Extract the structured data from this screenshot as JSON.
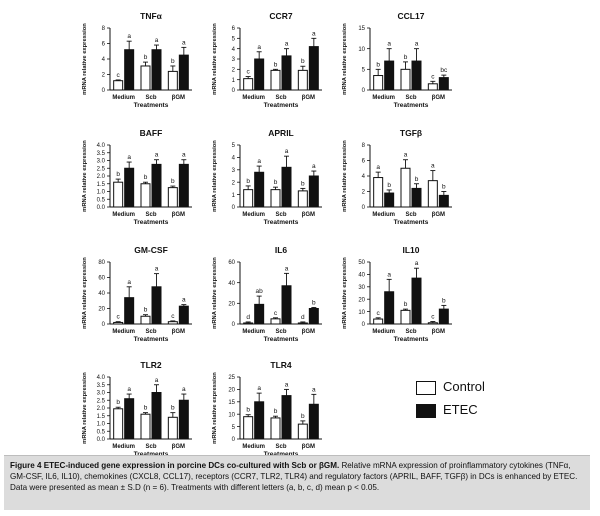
{
  "colors": {
    "control_fill": "#ffffff",
    "etec_fill": "#111111",
    "bar_stroke": "#111111",
    "caption_bg": "#dcdcdc"
  },
  "shared": {
    "ylabel": "mRNA relative expression",
    "xlabel": "Treatments",
    "categories": [
      "Medium",
      "Scb",
      "βGM"
    ]
  },
  "legend": {
    "control": "Control",
    "etec": "ETEC"
  },
  "caption": {
    "label": "Figure 4 ETEC-induced gene expression in porcine DCs co-cultured with Scb or βGM.",
    "text": "Relative mRNA expression of proinflammatory cytokines (TNFα, GM-CSF, IL6, IL10), chemokines (CXCL8, CCL17), receptors (CCR7, TLR2, TLR4) and regulatory factors (APRIL, BAFF, TGFβ) in DCs is enhanced by ETEC. Data were presented as mean ± S.D (n = 6). Treatments with different letters (a, b, c, d) mean p < 0.05."
  },
  "chart_data": [
    {
      "type": "bar",
      "title": "TNFα",
      "ylim": [
        0,
        8
      ],
      "yticks": [
        0,
        2,
        4,
        6,
        8
      ],
      "categories": [
        "Medium",
        "Scb",
        "βGM"
      ],
      "series": [
        {
          "name": "Control",
          "values": [
            1.2,
            3.1,
            2.4
          ],
          "errors": [
            0.1,
            0.5,
            0.7
          ],
          "letters": [
            "c",
            "b",
            "b"
          ]
        },
        {
          "name": "ETEC",
          "values": [
            5.2,
            5.2,
            4.5
          ],
          "errors": [
            1.1,
            0.6,
            1.0
          ],
          "letters": [
            "a",
            "a",
            "a"
          ]
        }
      ]
    },
    {
      "type": "bar",
      "title": "CCR7",
      "ylim": [
        0,
        6
      ],
      "yticks": [
        0,
        1,
        2,
        3,
        4,
        5,
        6
      ],
      "categories": [
        "Medium",
        "Scb",
        "βGM"
      ],
      "series": [
        {
          "name": "Control",
          "values": [
            1.1,
            1.9,
            1.9
          ],
          "errors": [
            0.2,
            0.1,
            0.4
          ],
          "letters": [
            "c",
            "b",
            "b"
          ]
        },
        {
          "name": "ETEC",
          "values": [
            3.0,
            3.3,
            4.2
          ],
          "errors": [
            0.7,
            0.7,
            0.8
          ],
          "letters": [
            "a",
            "a",
            "a"
          ]
        }
      ]
    },
    {
      "type": "bar",
      "title": "CCL17",
      "ylim": [
        0,
        15
      ],
      "yticks": [
        0,
        5,
        10,
        15
      ],
      "categories": [
        "Medium",
        "Scb",
        "βGM"
      ],
      "series": [
        {
          "name": "Control",
          "values": [
            3.5,
            5.0,
            1.5
          ],
          "errors": [
            1.5,
            1.8,
            0.6
          ],
          "letters": [
            "b",
            "b",
            "c"
          ]
        },
        {
          "name": "ETEC",
          "values": [
            7.0,
            7.0,
            3.0
          ],
          "errors": [
            3.0,
            3.0,
            0.6
          ],
          "letters": [
            "a",
            "a",
            "bc"
          ]
        }
      ]
    },
    {
      "type": "bar",
      "title": "BAFF",
      "ylim": [
        0,
        4
      ],
      "yticks": [
        0.0,
        0.5,
        1.0,
        1.5,
        2.0,
        2.5,
        3.0,
        3.5,
        4.0
      ],
      "categories": [
        "Medium",
        "Scb",
        "βGM"
      ],
      "series": [
        {
          "name": "Control",
          "values": [
            1.6,
            1.5,
            1.25
          ],
          "errors": [
            0.2,
            0.1,
            0.1
          ],
          "letters": [
            "b",
            "b",
            "b"
          ]
        },
        {
          "name": "ETEC",
          "values": [
            2.5,
            2.75,
            2.75
          ],
          "errors": [
            0.4,
            0.3,
            0.3
          ],
          "letters": [
            "a",
            "a",
            "a"
          ]
        }
      ]
    },
    {
      "type": "bar",
      "title": "APRIL",
      "ylim": [
        0,
        5
      ],
      "yticks": [
        0,
        1,
        2,
        3,
        4,
        5
      ],
      "categories": [
        "Medium",
        "Scb",
        "βGM"
      ],
      "series": [
        {
          "name": "Control",
          "values": [
            1.4,
            1.4,
            1.3
          ],
          "errors": [
            0.3,
            0.2,
            0.2
          ],
          "letters": [
            "b",
            "b",
            "b"
          ]
        },
        {
          "name": "ETEC",
          "values": [
            2.8,
            3.2,
            2.5
          ],
          "errors": [
            0.5,
            0.9,
            0.4
          ],
          "letters": [
            "a",
            "a",
            "a"
          ]
        }
      ]
    },
    {
      "type": "bar",
      "title": "TGFβ",
      "ylim": [
        0,
        8
      ],
      "yticks": [
        0,
        2,
        4,
        6,
        8
      ],
      "categories": [
        "Medium",
        "Scb",
        "βGM"
      ],
      "series": [
        {
          "name": "Control",
          "values": [
            3.8,
            5.0,
            3.4
          ],
          "errors": [
            0.7,
            1.1,
            1.3
          ],
          "letters": [
            "a",
            "a",
            "a"
          ]
        },
        {
          "name": "ETEC",
          "values": [
            1.8,
            2.4,
            1.5
          ],
          "errors": [
            0.4,
            0.6,
            0.5
          ],
          "letters": [
            "b",
            "b",
            "b"
          ]
        }
      ]
    },
    {
      "type": "bar",
      "title": "GM-CSF",
      "ylim": [
        0,
        80
      ],
      "yticks": [
        0,
        20,
        40,
        60,
        80
      ],
      "categories": [
        "Medium",
        "Scb",
        "βGM"
      ],
      "series": [
        {
          "name": "Control",
          "values": [
            2,
            10,
            3
          ],
          "errors": [
            1,
            2,
            1
          ],
          "letters": [
            "c",
            "b",
            "c"
          ]
        },
        {
          "name": "ETEC",
          "values": [
            34,
            48,
            23
          ],
          "errors": [
            14,
            17,
            2
          ],
          "letters": [
            "a",
            "a",
            "a"
          ]
        }
      ]
    },
    {
      "type": "bar",
      "title": "IL6",
      "ylim": [
        0,
        60
      ],
      "yticks": [
        0,
        20,
        40,
        60
      ],
      "categories": [
        "Medium",
        "Scb",
        "βGM"
      ],
      "series": [
        {
          "name": "Control",
          "values": [
            1,
            5,
            1
          ],
          "errors": [
            1,
            1,
            1
          ],
          "letters": [
            "d",
            "c",
            "d"
          ]
        },
        {
          "name": "ETEC",
          "values": [
            19,
            37,
            15
          ],
          "errors": [
            8,
            12,
            1
          ],
          "letters": [
            "ab",
            "a",
            "b"
          ]
        }
      ]
    },
    {
      "type": "bar",
      "title": "IL10",
      "ylim": [
        0,
        50
      ],
      "yticks": [
        0,
        10,
        20,
        30,
        40,
        50
      ],
      "categories": [
        "Medium",
        "Scb",
        "βGM"
      ],
      "series": [
        {
          "name": "Control",
          "values": [
            4,
            11,
            1
          ],
          "errors": [
            1,
            1,
            1
          ],
          "letters": [
            "c",
            "b",
            "c"
          ]
        },
        {
          "name": "ETEC",
          "values": [
            26,
            37,
            12
          ],
          "errors": [
            10,
            8,
            3
          ],
          "letters": [
            "a",
            "a",
            "b"
          ]
        }
      ]
    },
    {
      "type": "bar",
      "title": "TLR2",
      "ylim": [
        0,
        4
      ],
      "yticks": [
        0.0,
        0.5,
        1.0,
        1.5,
        2.0,
        2.5,
        3.0,
        3.5,
        4.0
      ],
      "categories": [
        "Medium",
        "Scb",
        "βGM"
      ],
      "series": [
        {
          "name": "Control",
          "values": [
            1.95,
            1.6,
            1.4
          ],
          "errors": [
            0.1,
            0.1,
            0.3
          ],
          "letters": [
            "b",
            "b",
            "b"
          ]
        },
        {
          "name": "ETEC",
          "values": [
            2.6,
            3.0,
            2.5
          ],
          "errors": [
            0.3,
            0.5,
            0.4
          ],
          "letters": [
            "a",
            "a",
            "a"
          ]
        }
      ]
    },
    {
      "type": "bar",
      "title": "TLR4",
      "ylim": [
        0,
        25
      ],
      "yticks": [
        0,
        5,
        10,
        15,
        20,
        25
      ],
      "categories": [
        "Medium",
        "Scb",
        "βGM"
      ],
      "series": [
        {
          "name": "Control",
          "values": [
            9,
            8.5,
            6
          ],
          "errors": [
            0.8,
            0.7,
            1.3
          ],
          "letters": [
            "b",
            "b",
            "b"
          ]
        },
        {
          "name": "ETEC",
          "values": [
            15,
            17.5,
            14
          ],
          "errors": [
            3.5,
            2.5,
            4.0
          ],
          "letters": [
            "a",
            "a",
            "a"
          ]
        }
      ]
    }
  ]
}
